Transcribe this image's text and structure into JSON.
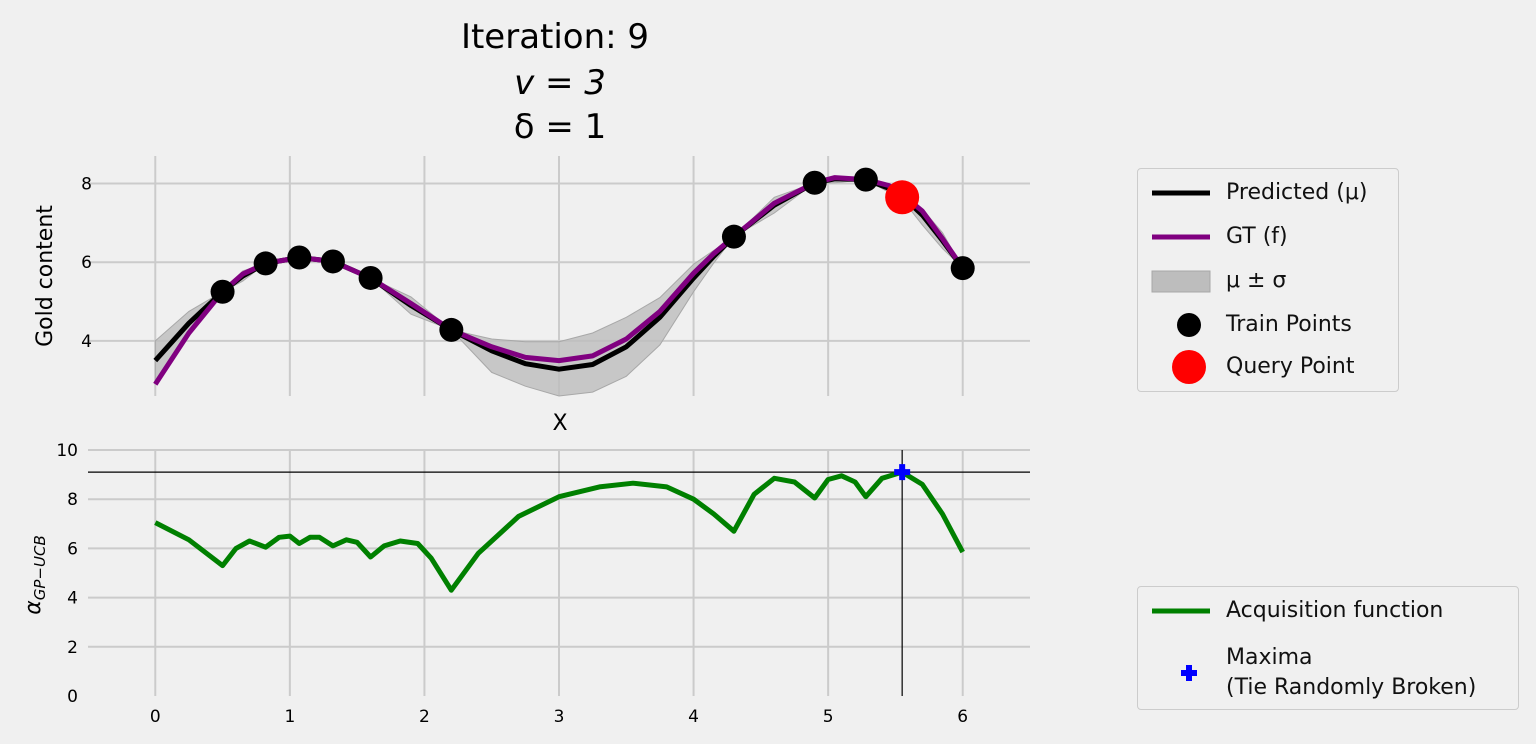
{
  "title": {
    "line1": "Iteration: 9",
    "line2": "v = 3",
    "line3": "δ = 1"
  },
  "colors": {
    "background": "#f0f0f0",
    "grid": "#cbcbcb",
    "predicted": "#000000",
    "gt": "#800080",
    "band": "#bdbdbd",
    "train": "#000000",
    "query": "#ff0000",
    "acq": "#008000",
    "max": "#0000ff"
  },
  "chart_data": [
    {
      "type": "line",
      "ylabel": "Gold content",
      "xlabel": "X",
      "xlim": [
        -0.5,
        6.5
      ],
      "ylim": [
        2.6,
        8.7
      ],
      "xticks": [
        0,
        1,
        2,
        3,
        4,
        5,
        6
      ],
      "yticks": [
        4,
        6,
        8
      ],
      "grid": true,
      "legend_position": "outside-right",
      "series": [
        {
          "name": "Predicted (μ)",
          "x": [
            0,
            0.25,
            0.5,
            0.65,
            0.82,
            1.07,
            1.32,
            1.6,
            1.9,
            2.2,
            2.5,
            2.75,
            3,
            3.25,
            3.5,
            3.75,
            4,
            4.15,
            4.3,
            4.6,
            4.9,
            5.05,
            5.28,
            5.45,
            5.55,
            5.7,
            5.85,
            6
          ],
          "y": [
            3.5,
            4.45,
            5.25,
            5.65,
            5.97,
            6.12,
            6.02,
            5.6,
            4.9,
            4.28,
            3.75,
            3.42,
            3.28,
            3.4,
            3.85,
            4.6,
            5.6,
            6.15,
            6.65,
            7.45,
            8.02,
            8.12,
            8.1,
            7.88,
            7.68,
            7.2,
            6.55,
            5.85
          ]
        },
        {
          "name": "GT (f)",
          "x": [
            0,
            0.25,
            0.5,
            0.65,
            0.82,
            1.07,
            1.32,
            1.6,
            1.9,
            2.2,
            2.5,
            2.75,
            3,
            3.25,
            3.5,
            3.75,
            4,
            4.15,
            4.3,
            4.6,
            4.9,
            5.05,
            5.28,
            5.45,
            5.55,
            5.7,
            5.85,
            6
          ],
          "y": [
            2.9,
            4.2,
            5.25,
            5.7,
            5.97,
            6.12,
            6.02,
            5.6,
            4.95,
            4.28,
            3.85,
            3.58,
            3.5,
            3.62,
            4.05,
            4.75,
            5.72,
            6.22,
            6.65,
            7.5,
            8.02,
            8.15,
            8.1,
            7.95,
            7.72,
            7.3,
            6.6,
            5.85
          ]
        },
        {
          "name": "μ ± σ",
          "x": [
            0,
            0.25,
            0.5,
            0.65,
            0.82,
            1.07,
            1.32,
            1.6,
            1.9,
            2.2,
            2.5,
            2.75,
            3,
            3.25,
            3.5,
            3.75,
            4,
            4.15,
            4.3,
            4.6,
            4.9,
            5.05,
            5.28,
            5.45,
            5.55,
            5.7,
            5.85,
            6
          ],
          "upper": [
            4.0,
            4.75,
            5.25,
            5.78,
            5.97,
            6.12,
            6.02,
            5.6,
            5.12,
            4.28,
            4.05,
            3.98,
            3.98,
            4.2,
            4.6,
            5.1,
            5.95,
            6.3,
            6.65,
            7.65,
            8.02,
            8.18,
            8.1,
            7.93,
            7.72,
            7.35,
            6.75,
            5.85
          ],
          "lower": [
            3.0,
            4.15,
            5.25,
            5.52,
            5.97,
            6.12,
            6.02,
            5.6,
            4.68,
            4.28,
            3.2,
            2.85,
            2.6,
            2.7,
            3.1,
            3.9,
            5.25,
            5.98,
            6.65,
            7.25,
            8.02,
            8.02,
            8.1,
            7.78,
            7.6,
            6.95,
            6.35,
            5.85
          ]
        },
        {
          "name": "Train Points",
          "x": [
            0.5,
            0.82,
            1.07,
            1.32,
            1.6,
            2.2,
            4.3,
            4.9,
            5.28,
            6
          ],
          "y": [
            5.25,
            5.97,
            6.12,
            6.02,
            5.6,
            4.28,
            6.65,
            8.02,
            8.1,
            5.85
          ]
        },
        {
          "name": "Query Point",
          "x": [
            5.55
          ],
          "y": [
            7.65
          ]
        }
      ]
    },
    {
      "type": "line",
      "ylabel": "αGP−UCB",
      "xlim": [
        -0.5,
        6.5
      ],
      "ylim": [
        0,
        10
      ],
      "xticks": [
        0,
        1,
        2,
        3,
        4,
        5,
        6
      ],
      "yticks": [
        0,
        2,
        4,
        6,
        8,
        10
      ],
      "grid": true,
      "legend_position": "outside-right",
      "crosshair": {
        "x": 5.55,
        "y": 9.1
      },
      "series": [
        {
          "name": "Acquisition function",
          "x": [
            0,
            0.25,
            0.5,
            0.6,
            0.7,
            0.82,
            0.92,
            1.0,
            1.07,
            1.15,
            1.22,
            1.32,
            1.42,
            1.5,
            1.6,
            1.7,
            1.82,
            1.95,
            2.05,
            2.2,
            2.4,
            2.7,
            3.0,
            3.3,
            3.55,
            3.8,
            4.0,
            4.15,
            4.3,
            4.45,
            4.6,
            4.75,
            4.9,
            5.0,
            5.1,
            5.2,
            5.28,
            5.4,
            5.55,
            5.7,
            5.85,
            6
          ],
          "y": [
            7.05,
            6.35,
            5.3,
            6.0,
            6.3,
            6.05,
            6.45,
            6.5,
            6.2,
            6.45,
            6.45,
            6.1,
            6.35,
            6.25,
            5.65,
            6.1,
            6.3,
            6.2,
            5.6,
            4.3,
            5.8,
            7.3,
            8.1,
            8.5,
            8.65,
            8.5,
            8.0,
            7.4,
            6.7,
            8.2,
            8.85,
            8.7,
            8.05,
            8.8,
            8.95,
            8.7,
            8.1,
            8.85,
            9.1,
            8.6,
            7.4,
            5.85
          ]
        },
        {
          "name": "Maxima\n(Tie Randomly Broken)",
          "x": [
            5.55
          ],
          "y": [
            9.1
          ]
        }
      ]
    }
  ],
  "legend_top": [
    {
      "symbol": "line",
      "color": "#000000",
      "label": "Predicted (μ)"
    },
    {
      "symbol": "line",
      "color": "#800080",
      "label": "GT (f)"
    },
    {
      "symbol": "patch",
      "color": "#bdbdbd",
      "label": "μ ± σ"
    },
    {
      "symbol": "dot",
      "color": "#000000",
      "label": "Train Points"
    },
    {
      "symbol": "bigdot",
      "color": "#ff0000",
      "label": "Query Point"
    }
  ],
  "legend_bottom": [
    {
      "symbol": "line",
      "color": "#008000",
      "label": "Acquisition function"
    },
    {
      "symbol": "plus",
      "color": "#0000ff",
      "label": "Maxima\n(Tie Randomly Broken)"
    }
  ]
}
